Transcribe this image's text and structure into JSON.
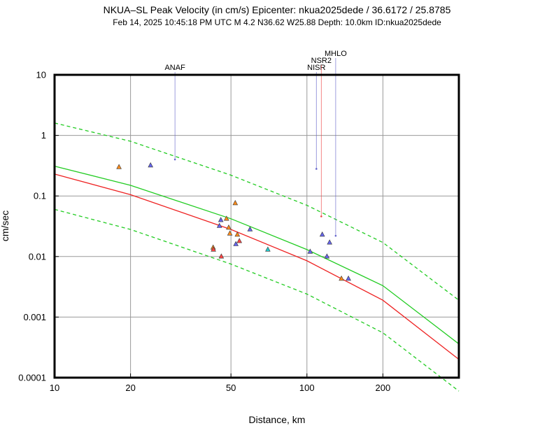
{
  "header": {
    "title": "NKUA–SL Peak Velocity (in cm/s) Epicenter: nkua2025dede / 36.6172 / 25.8785",
    "subtitle": "Feb 14, 2025 10:45:18 PM UTC    M 4.2    N36.62 W25.88    Depth: 10.0km    ID:nkua2025dede"
  },
  "chart_data": {
    "type": "scatter",
    "xscale": "log",
    "yscale": "log",
    "xlim": [
      10,
      400
    ],
    "ylim": [
      0.0001,
      10
    ],
    "xlabel": "Distance, km",
    "ylabel": "cm/sec",
    "grid": true,
    "x_ticks": [
      {
        "value": 10,
        "label": "10"
      },
      {
        "value": 20,
        "label": "20"
      },
      {
        "value": 50,
        "label": "50"
      },
      {
        "value": 100,
        "label": "100"
      },
      {
        "value": 200,
        "label": "200"
      }
    ],
    "y_ticks": [
      {
        "value": 10,
        "label": "10"
      },
      {
        "value": 1,
        "label": "1"
      },
      {
        "value": 0.1,
        "label": "0.1"
      },
      {
        "value": 0.01,
        "label": "0.01"
      },
      {
        "value": 0.001,
        "label": "0.001"
      },
      {
        "value": 0.0001,
        "label": "0.0001"
      }
    ],
    "curves": [
      {
        "style": "dashed",
        "color": "#22cc22",
        "x": [
          10,
          20,
          50,
          100,
          200,
          400
        ],
        "y": [
          1.6,
          0.8,
          0.22,
          0.07,
          0.017,
          0.0019
        ]
      },
      {
        "style": "solid",
        "color": "#22cc22",
        "x": [
          10,
          20,
          50,
          100,
          200,
          400
        ],
        "y": [
          0.31,
          0.15,
          0.042,
          0.013,
          0.0033,
          0.00036
        ]
      },
      {
        "style": "solid",
        "color": "#ee2222",
        "x": [
          10,
          20,
          50,
          100,
          200,
          400
        ],
        "y": [
          0.23,
          0.105,
          0.028,
          0.0085,
          0.0019,
          0.0002
        ]
      },
      {
        "style": "dashed",
        "color": "#22cc22",
        "x": [
          10,
          20,
          50,
          100,
          200,
          400
        ],
        "y": [
          0.06,
          0.028,
          0.0075,
          0.0024,
          0.00055,
          6e-05
        ]
      }
    ],
    "stations": [
      {
        "x": 18,
        "y": 0.3,
        "color": "#ff8c1a"
      },
      {
        "x": 24,
        "y": 0.32,
        "color": "#6666ee"
      },
      {
        "x": 42.5,
        "y": 0.014,
        "color": "#ff8c1a"
      },
      {
        "x": 42.6,
        "y": 0.013,
        "color": "#ff4444"
      },
      {
        "x": 45,
        "y": 0.032,
        "color": "#6666ee"
      },
      {
        "x": 45.6,
        "y": 0.04,
        "color": "#6666ee"
      },
      {
        "x": 45.8,
        "y": 0.01,
        "color": "#ff4444"
      },
      {
        "x": 48,
        "y": 0.042,
        "color": "#ff8c1a"
      },
      {
        "x": 49,
        "y": 0.03,
        "color": "#ff8c1a"
      },
      {
        "x": 49.5,
        "y": 0.024,
        "color": "#ff8c1a"
      },
      {
        "x": 52,
        "y": 0.076,
        "color": "#ff8c1a"
      },
      {
        "x": 52.3,
        "y": 0.016,
        "color": "#6666ee"
      },
      {
        "x": 53,
        "y": 0.023,
        "color": "#ff8c1a"
      },
      {
        "x": 54,
        "y": 0.018,
        "color": "#ff4444"
      },
      {
        "x": 59.5,
        "y": 0.028,
        "color": "#6666ee"
      },
      {
        "x": 70,
        "y": 0.013,
        "color": "#22cccc"
      },
      {
        "x": 103,
        "y": 0.012,
        "color": "#6666ee"
      },
      {
        "x": 115,
        "y": 0.023,
        "color": "#6666ee"
      },
      {
        "x": 120,
        "y": 0.01,
        "color": "#6666ee"
      },
      {
        "x": 123,
        "y": 0.017,
        "color": "#6666ee"
      },
      {
        "x": 137,
        "y": 0.0043,
        "color": "#ff8c1a"
      },
      {
        "x": 146,
        "y": 0.0043,
        "color": "#6666ee"
      }
    ],
    "annotations": [
      {
        "label": "ANAF",
        "x": 30,
        "y": 0.4,
        "color": "#6666cc",
        "tier": 0
      },
      {
        "label": "NISR",
        "x": 109,
        "y": 0.28,
        "color": "#6666cc",
        "tier": 0
      },
      {
        "label": "NSR2",
        "x": 114,
        "y": 0.046,
        "color": "#ee4444",
        "tier": 1
      },
      {
        "label": "MHLO",
        "x": 130,
        "y": 0.022,
        "color": "#6666cc",
        "tier": 2
      }
    ]
  }
}
